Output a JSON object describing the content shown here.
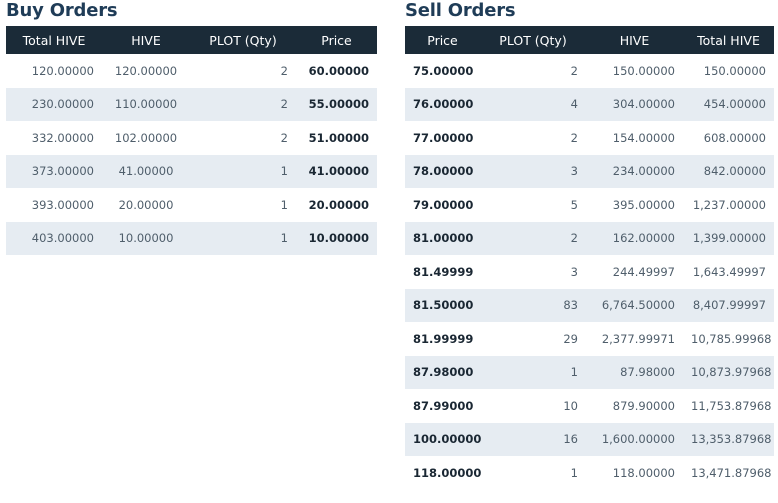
{
  "buy": {
    "title": "Buy Orders",
    "headers": [
      "Total HIVE",
      "HIVE",
      "PLOT (Qty)",
      "Price"
    ],
    "rows": [
      {
        "total": "120.00000",
        "hive": "120.00000",
        "qty": "2",
        "price": "60.00000"
      },
      {
        "total": "230.00000",
        "hive": "110.00000",
        "qty": "2",
        "price": "55.00000"
      },
      {
        "total": "332.00000",
        "hive": "102.00000",
        "qty": "2",
        "price": "51.00000"
      },
      {
        "total": "373.00000",
        "hive": "41.00000",
        "qty": "1",
        "price": "41.00000"
      },
      {
        "total": "393.00000",
        "hive": "20.00000",
        "qty": "1",
        "price": "20.00000"
      },
      {
        "total": "403.00000",
        "hive": "10.00000",
        "qty": "1",
        "price": "10.00000"
      }
    ]
  },
  "sell": {
    "title": "Sell Orders",
    "headers": [
      "Price",
      "PLOT (Qty)",
      "HIVE",
      "Total HIVE"
    ],
    "rows": [
      {
        "price": "75.00000",
        "qty": "2",
        "hive": "150.00000",
        "total": "150.00000"
      },
      {
        "price": "76.00000",
        "qty": "4",
        "hive": "304.00000",
        "total": "454.00000"
      },
      {
        "price": "77.00000",
        "qty": "2",
        "hive": "154.00000",
        "total": "608.00000"
      },
      {
        "price": "78.00000",
        "qty": "3",
        "hive": "234.00000",
        "total": "842.00000"
      },
      {
        "price": "79.00000",
        "qty": "5",
        "hive": "395.00000",
        "total": "1,237.00000"
      },
      {
        "price": "81.00000",
        "qty": "2",
        "hive": "162.00000",
        "total": "1,399.00000"
      },
      {
        "price": "81.49999",
        "qty": "3",
        "hive": "244.49997",
        "total": "1,643.49997"
      },
      {
        "price": "81.50000",
        "qty": "83",
        "hive": "6,764.50000",
        "total": "8,407.99997"
      },
      {
        "price": "81.99999",
        "qty": "29",
        "hive": "2,377.99971",
        "total": "10,785.99968"
      },
      {
        "price": "87.98000",
        "qty": "1",
        "hive": "87.98000",
        "total": "10,873.97968"
      },
      {
        "price": "87.99000",
        "qty": "10",
        "hive": "879.90000",
        "total": "11,753.87968"
      },
      {
        "price": "100.00000",
        "qty": "16",
        "hive": "1,600.00000",
        "total": "13,353.87968"
      },
      {
        "price": "118.00000",
        "qty": "1",
        "hive": "118.00000",
        "total": "13,471.87968"
      }
    ]
  }
}
